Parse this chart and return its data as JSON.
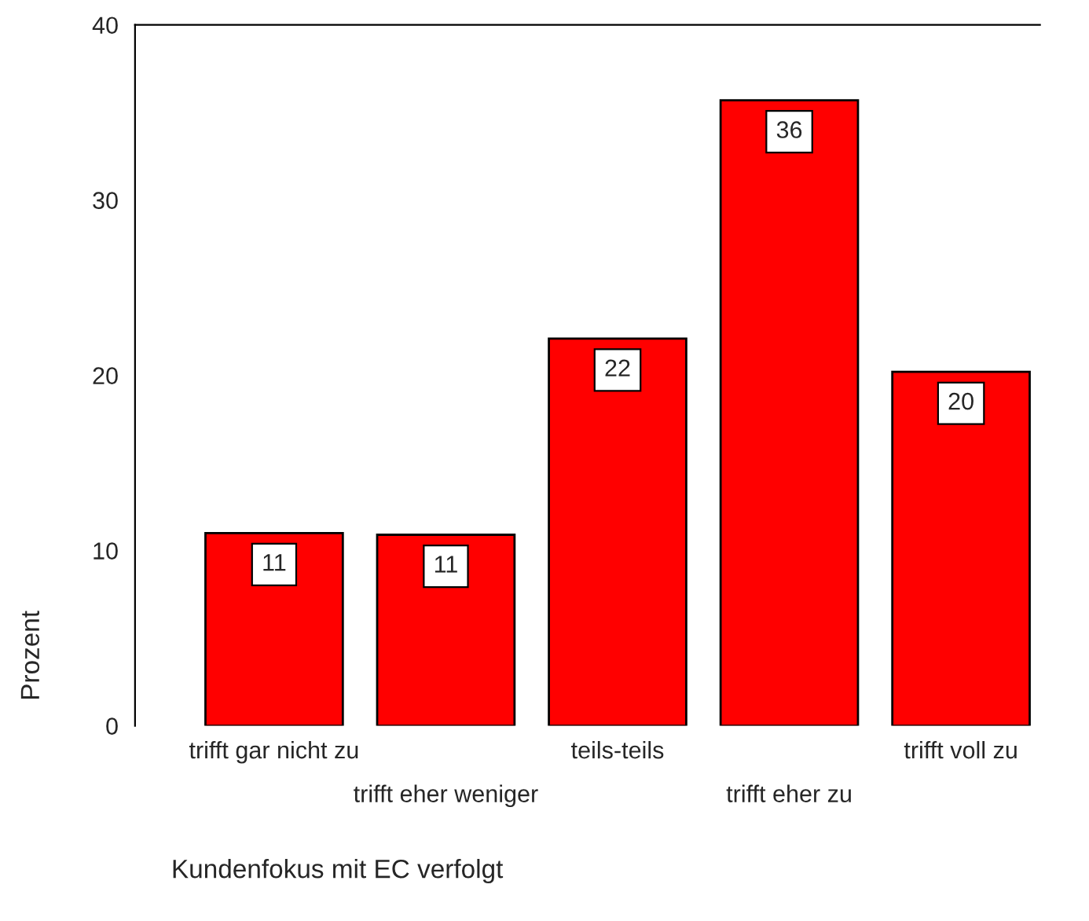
{
  "chart_data": {
    "type": "bar",
    "xlabel": "Kundenfokus mit EC verfolgt",
    "ylabel": "Prozent",
    "categories": [
      "trifft gar nicht zu",
      "trifft eher weniger",
      "teils-teils",
      "trifft eher zu",
      "trifft voll zu"
    ],
    "values": [
      11.0,
      10.9,
      22.1,
      35.7,
      20.2
    ],
    "value_labels": [
      "11",
      "11",
      "22",
      "36",
      "20"
    ],
    "color": "#ff0000",
    "ylim": [
      0,
      40
    ],
    "yticks": [
      0,
      10,
      20,
      30,
      40
    ],
    "grid": false,
    "legend": false
  }
}
